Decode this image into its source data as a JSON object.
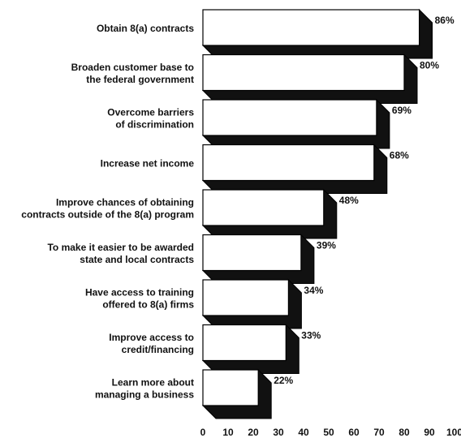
{
  "chart_data": {
    "type": "bar",
    "orientation": "horizontal",
    "style": "3d-shadow",
    "categories": [
      [
        "Obtain 8(a) contracts"
      ],
      [
        "Broaden customer base to",
        "the federal government"
      ],
      [
        "Overcome barriers",
        "of discrimination"
      ],
      [
        "Increase net income"
      ],
      [
        "Improve chances of obtaining",
        "contracts outside of the 8(a) program"
      ],
      [
        "To make it easier to be awarded",
        "state and local contracts"
      ],
      [
        "Have access to training",
        "offered to 8(a) firms"
      ],
      [
        "Improve access to",
        "credit/financing"
      ],
      [
        "Learn more about",
        "managing a business"
      ]
    ],
    "values": [
      86,
      80,
      69,
      68,
      48,
      39,
      34,
      33,
      22
    ],
    "value_labels": [
      "86%",
      "80%",
      "69%",
      "68%",
      "48%",
      "39%",
      "34%",
      "33%",
      "22%"
    ],
    "xlim": [
      0,
      100
    ],
    "xticks": [
      0,
      10,
      20,
      30,
      40,
      50,
      60,
      70,
      80,
      90,
      100
    ],
    "grid": false,
    "colors": {
      "bar_face": "#ffffff",
      "bar_shadow": "#111111",
      "outline": "#000000"
    }
  }
}
